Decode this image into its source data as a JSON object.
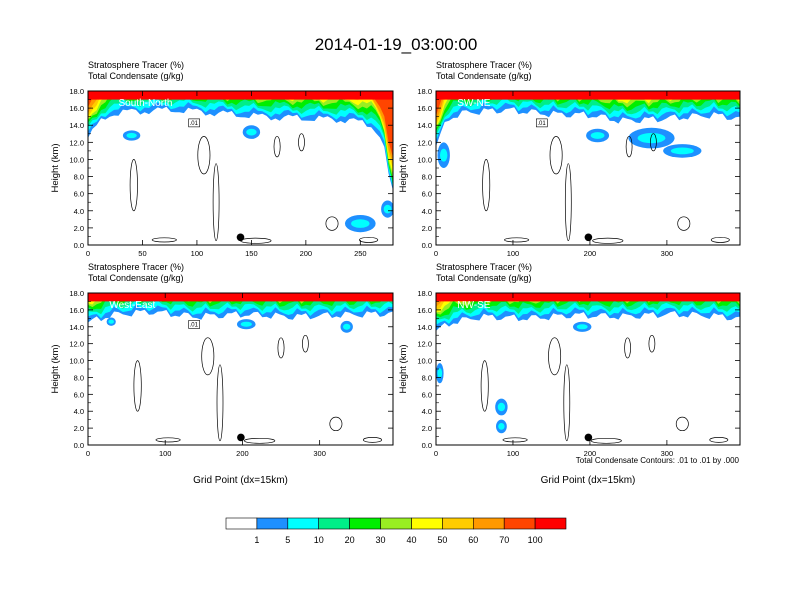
{
  "title": "2014-01-19_03:00:00",
  "colorbar": {
    "levels": [
      "1",
      "5",
      "10",
      "20",
      "30",
      "40",
      "50",
      "60",
      "70",
      "100"
    ],
    "colors": [
      "#ffffff",
      "#1e90ff",
      "#00ffff",
      "#00ee88",
      "#00ee00",
      "#99ee22",
      "#ffff00",
      "#ffcc00",
      "#ff9900",
      "#ff4500",
      "#ff0000"
    ]
  },
  "contour_note": "Total Condensate Contours: .01 to .01 by .000",
  "chart_data": [
    {
      "type": "heatmap",
      "name": "South-North",
      "line1": "Stratosphere Tracer   (%)",
      "line2": "Total Condensate   (g/kg)",
      "ylabel": "Height (km)",
      "xlabel": "",
      "xlim": [
        0,
        280
      ],
      "ylim": [
        0,
        18
      ],
      "xticks": [
        "0",
        "50",
        "100",
        "150",
        "200",
        "250"
      ],
      "yticks": [
        "0.0",
        "2.0",
        "4.0",
        "6.0",
        "8.0",
        "10.0",
        "12.0",
        "14.0",
        "16.0",
        "18.0"
      ],
      "contour_label": ".01",
      "marker": {
        "x": 140,
        "y": 0.9
      },
      "tropopause": [
        [
          0,
          12.5
        ],
        [
          10,
          14.2
        ],
        [
          20,
          15.3
        ],
        [
          40,
          15.6
        ],
        [
          80,
          15.8
        ],
        [
          120,
          15.4
        ],
        [
          160,
          15.0
        ],
        [
          200,
          14.8
        ],
        [
          240,
          14.6
        ],
        [
          260,
          14.0
        ],
        [
          270,
          12.5
        ],
        [
          275,
          9
        ],
        [
          278,
          6.5
        ],
        [
          280,
          6
        ]
      ],
      "pockets": [
        [
          40,
          12.8,
          8,
          0.6
        ],
        [
          150,
          13.2,
          8,
          0.8
        ],
        [
          250,
          2.5,
          14,
          1.0
        ],
        [
          275,
          4.2,
          6,
          1.0
        ]
      ]
    },
    {
      "type": "heatmap",
      "name": "SW-NE",
      "line1": "Stratosphere Tracer   (%)",
      "line2": "Total Condensate   (g/kg)",
      "ylabel": "Height (km)",
      "xlabel": "",
      "xlim": [
        0,
        395
      ],
      "ylim": [
        0,
        18
      ],
      "xticks": [
        "0",
        "100",
        "200",
        "300"
      ],
      "yticks": [
        "0.0",
        "2.0",
        "4.0",
        "6.0",
        "8.0",
        "10.0",
        "12.0",
        "14.0",
        "16.0",
        "18.0"
      ],
      "contour_label": ".01",
      "marker": {
        "x": 198,
        "y": 0.9
      },
      "tropopause": [
        [
          0,
          11.5
        ],
        [
          15,
          14.8
        ],
        [
          40,
          15.5
        ],
        [
          90,
          15.8
        ],
        [
          150,
          15.3
        ],
        [
          200,
          15.2
        ],
        [
          240,
          14.5
        ],
        [
          300,
          14.8
        ],
        [
          360,
          15.2
        ],
        [
          395,
          14.8
        ]
      ],
      "pockets": [
        [
          280,
          12.5,
          30,
          1.2
        ],
        [
          320,
          11.0,
          25,
          0.8
        ],
        [
          210,
          12.8,
          15,
          0.8
        ],
        [
          10,
          10.5,
          8,
          1.5
        ]
      ]
    },
    {
      "type": "heatmap",
      "name": "West-East",
      "line1": "Stratosphere Tracer   (%)",
      "line2": "Total Condensate   (g/kg)",
      "ylabel": "Height (km)",
      "xlabel": "Grid Point (dx=15km)",
      "xlim": [
        0,
        395
      ],
      "ylim": [
        0,
        18
      ],
      "xticks": [
        "0",
        "100",
        "200",
        "300"
      ],
      "yticks": [
        "0.0",
        "2.0",
        "4.0",
        "6.0",
        "8.0",
        "10.0",
        "12.0",
        "14.0",
        "16.0",
        "18.0"
      ],
      "contour_label": ".01",
      "marker": {
        "x": 198,
        "y": 0.9
      },
      "tropopause": [
        [
          0,
          14.5
        ],
        [
          30,
          15.4
        ],
        [
          80,
          15.8
        ],
        [
          140,
          15.2
        ],
        [
          200,
          15.5
        ],
        [
          260,
          15.2
        ],
        [
          330,
          15.4
        ],
        [
          395,
          15.6
        ]
      ],
      "pockets": [
        [
          205,
          14.3,
          12,
          0.6
        ],
        [
          335,
          14.0,
          8,
          0.7
        ],
        [
          30,
          14.6,
          6,
          0.5
        ]
      ]
    },
    {
      "type": "heatmap",
      "name": "NW-SE",
      "line1": "Stratosphere Tracer   (%)",
      "line2": "Total Condensate   (g/kg)",
      "ylabel": "Height (km)",
      "xlabel": "Grid Point (dx=15km)",
      "xlim": [
        0,
        395
      ],
      "ylim": [
        0,
        18
      ],
      "xticks": [
        "0",
        "100",
        "200",
        "300"
      ],
      "yticks": [
        "0.0",
        "2.0",
        "4.0",
        "6.0",
        "8.0",
        "10.0",
        "12.0",
        "14.0",
        "16.0",
        "18.0"
      ],
      "contour_label": "",
      "marker": {
        "x": 198,
        "y": 0.9
      },
      "tropopause": [
        [
          0,
          13.5
        ],
        [
          20,
          14.5
        ],
        [
          60,
          15.2
        ],
        [
          120,
          15.0
        ],
        [
          180,
          15.4
        ],
        [
          240,
          15.2
        ],
        [
          300,
          15.5
        ],
        [
          360,
          15.3
        ],
        [
          395,
          15.0
        ]
      ],
      "pockets": [
        [
          5,
          8.5,
          5,
          1.2
        ],
        [
          85,
          4.5,
          8,
          1.0
        ],
        [
          85,
          2.2,
          7,
          0.8
        ],
        [
          190,
          14.0,
          12,
          0.6
        ]
      ]
    }
  ]
}
